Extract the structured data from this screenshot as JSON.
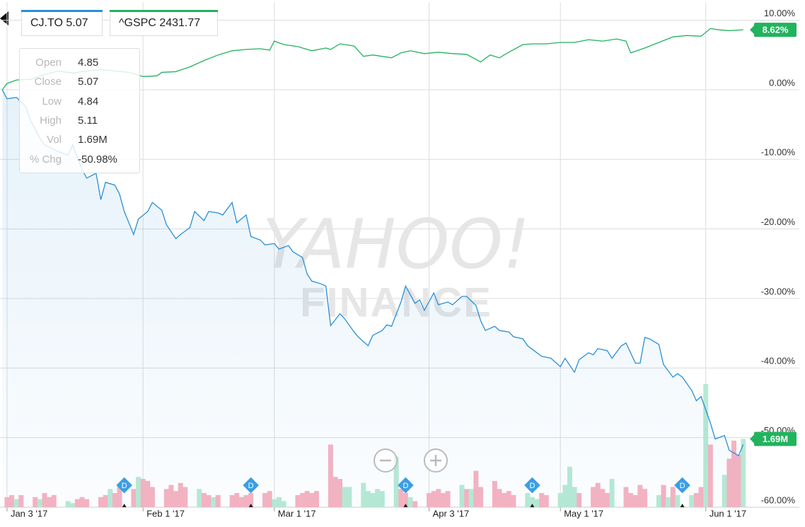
{
  "chart_data": {
    "type": "line",
    "xlim": [
      -1.5,
      158.7
    ],
    "xticks": [
      {
        "value": 0,
        "label": "Jan 3 '17"
      },
      {
        "value": 29,
        "label": "Feb 1 '17"
      },
      {
        "value": 57,
        "label": "Mar 1 '17"
      },
      {
        "value": 90,
        "label": "Apr 3 '17"
      },
      {
        "value": 118,
        "label": "May 1 '17"
      },
      {
        "value": 149,
        "label": "Jun 1 '17"
      }
    ],
    "ylim": [
      -60,
      12.6
    ],
    "yticks": [
      {
        "value": 10,
        "label": "10.00%"
      },
      {
        "value": 0,
        "label": "0.00%"
      },
      {
        "value": -10,
        "label": "-10.00%"
      },
      {
        "value": -20,
        "label": "-20.00%"
      },
      {
        "value": -30,
        "label": "-30.00%"
      },
      {
        "value": -40,
        "label": "-40.00%"
      },
      {
        "value": -50,
        "label": "-50.00%"
      },
      {
        "value": -60,
        "label": "-60.00%"
      }
    ],
    "grid": true,
    "watermark": [
      "YAHOO!",
      "FINANCE"
    ],
    "series": [
      {
        "name": "CJ.TO",
        "last": 5.07,
        "color": "#2a8fd6",
        "area": true,
        "x": [
          -1,
          0,
          2,
          4,
          5,
          7,
          8,
          11,
          13,
          14,
          16,
          17,
          19,
          20,
          21,
          23,
          24,
          25,
          27,
          28,
          30,
          31,
          33,
          34,
          36,
          37,
          39,
          40,
          42,
          43,
          45,
          46,
          48,
          49,
          51,
          52,
          54,
          55,
          57,
          58,
          60,
          61,
          63,
          64,
          65,
          67,
          68,
          69,
          71,
          72,
          74,
          75,
          77,
          78,
          80,
          81,
          82,
          84,
          85,
          87,
          88,
          89,
          91,
          92,
          94,
          95,
          97,
          98,
          100,
          101,
          102,
          104,
          105,
          107,
          108,
          110,
          111,
          113,
          114,
          116,
          118,
          119,
          121,
          122,
          124,
          125,
          126,
          128,
          129,
          131,
          132,
          134,
          135,
          136,
          137,
          139,
          140,
          142,
          143,
          144,
          146,
          147,
          148,
          150,
          151,
          153,
          154,
          156,
          157
        ],
        "values": [
          0,
          -1.3,
          -1.1,
          -2.4,
          -4.4,
          -6.9,
          -7.9,
          -8.9,
          -9.4,
          -7.9,
          -11.5,
          -12.7,
          -12.0,
          -15.8,
          -13.3,
          -13.7,
          -15.0,
          -17.5,
          -20.8,
          -18.6,
          -17.5,
          -16.2,
          -17.3,
          -19.4,
          -21.4,
          -20.8,
          -19.8,
          -17.5,
          -18.8,
          -17.5,
          -17.7,
          -18.0,
          -16.2,
          -19.1,
          -18.0,
          -21.1,
          -21.6,
          -22.3,
          -22.1,
          -22.9,
          -22.4,
          -23.3,
          -24.1,
          -26.5,
          -27.5,
          -27.9,
          -28.2,
          -33.9,
          -32.2,
          -32.9,
          -34.8,
          -35.6,
          -36.8,
          -35.3,
          -34.6,
          -33.8,
          -34.0,
          -30.5,
          -28.2,
          -30.7,
          -30.2,
          -31.7,
          -29.2,
          -30.9,
          -30.5,
          -30.9,
          -29.7,
          -29.7,
          -31.0,
          -33.2,
          -34.6,
          -34.0,
          -34.6,
          -34.8,
          -35.5,
          -35.8,
          -36.8,
          -37.8,
          -38.3,
          -38.6,
          -39.8,
          -38.6,
          -40.6,
          -38.8,
          -37.8,
          -38.1,
          -37.2,
          -37.5,
          -38.6,
          -36.8,
          -36.4,
          -39.3,
          -39.3,
          -35.6,
          -35.8,
          -36.6,
          -39.5,
          -41.3,
          -40.8,
          -41.3,
          -43.2,
          -44.7,
          -44.1,
          -47.9,
          -50.2,
          -49.7,
          -51.8,
          -52.6,
          -50.98
        ]
      },
      {
        "name": "^GSPC",
        "last": 2431.77,
        "color": "#22b35e",
        "area": false,
        "end_label": "8.62%",
        "x": [
          -1,
          0,
          2,
          5,
          8,
          11,
          14,
          17,
          20,
          23,
          26,
          29,
          32,
          33,
          36,
          39,
          42,
          45,
          48,
          51,
          54,
          56,
          57,
          59,
          62,
          65,
          68,
          69,
          71,
          74,
          76,
          78,
          82,
          84,
          86,
          89,
          92,
          95,
          98,
          101,
          103,
          105,
          107,
          110,
          112,
          115,
          118,
          121,
          124,
          127,
          130,
          132,
          133,
          136,
          139,
          142,
          145,
          148,
          150,
          152,
          154,
          157
        ],
        "values": [
          0,
          0.9,
          1.4,
          1.5,
          2.2,
          2.7,
          2.4,
          2.7,
          2.9,
          2.7,
          2.5,
          1.9,
          2.0,
          2.5,
          2.6,
          3.3,
          4.2,
          5.0,
          5.6,
          5.8,
          5.9,
          5.7,
          7.0,
          6.5,
          6.2,
          5.6,
          6.0,
          5.8,
          6.6,
          6.3,
          4.8,
          5.0,
          4.6,
          5.3,
          5.6,
          5.2,
          5.4,
          5.2,
          5.1,
          4.0,
          5.0,
          4.6,
          5.4,
          6.5,
          6.6,
          6.6,
          6.8,
          6.8,
          7.2,
          7.0,
          7.3,
          7.0,
          5.3,
          6.0,
          6.8,
          7.6,
          7.8,
          7.7,
          8.8,
          8.6,
          8.5,
          8.62
        ]
      }
    ],
    "volume": {
      "ylim": [
        0,
        12.5
      ],
      "end_label": "1.69M",
      "x": [
        0,
        1,
        2,
        3,
        6,
        7,
        8,
        9,
        10,
        13,
        14,
        15,
        16,
        17,
        20,
        21,
        22,
        23,
        24,
        27,
        28,
        29,
        30,
        31,
        34,
        35,
        36,
        37,
        38,
        41,
        42,
        43,
        44,
        45,
        48,
        49,
        50,
        51,
        52,
        55,
        56,
        57,
        58,
        59,
        62,
        63,
        64,
        65,
        66,
        69,
        70,
        71,
        72,
        73,
        76,
        77,
        78,
        79,
        80,
        83,
        84,
        85,
        86,
        87,
        90,
        91,
        92,
        93,
        94,
        97,
        98,
        99,
        100,
        101,
        104,
        105,
        106,
        107,
        108,
        111,
        112,
        113,
        114,
        115,
        118,
        119,
        120,
        121,
        122,
        125,
        126,
        127,
        128,
        129,
        132,
        133,
        134,
        135,
        136,
        139,
        140,
        141,
        142,
        143,
        146,
        147,
        148,
        149,
        150,
        153,
        154,
        155,
        156,
        157
      ],
      "values": [
        0.25,
        0.3,
        0.2,
        0.3,
        0.25,
        0.2,
        0.35,
        0.25,
        0.3,
        0.15,
        0.1,
        0.2,
        0.25,
        0.2,
        0.25,
        0.3,
        0.45,
        0.35,
        0.5,
        0.45,
        0.75,
        0.7,
        0.65,
        0.5,
        0.45,
        0.55,
        0.4,
        0.6,
        0.5,
        0.45,
        0.35,
        0.3,
        0.25,
        0.3,
        0.3,
        0.35,
        0.25,
        0.3,
        0.35,
        0.35,
        0.4,
        0.2,
        0.25,
        0.15,
        0.3,
        0.35,
        0.4,
        0.35,
        0.4,
        1.55,
        0.75,
        0.7,
        0.5,
        0.5,
        0.6,
        0.4,
        0.35,
        0.45,
        0.4,
        1.25,
        0.45,
        0.35,
        0.25,
        0.15,
        0.35,
        0.4,
        0.45,
        0.35,
        0.4,
        0.55,
        0.45,
        0.45,
        0.9,
        0.5,
        0.65,
        0.45,
        0.35,
        0.4,
        0.3,
        0.35,
        0.25,
        0.2,
        0.35,
        0.3,
        0.35,
        0.55,
        1.0,
        0.5,
        0.35,
        0.5,
        0.6,
        0.45,
        0.35,
        0.7,
        0.5,
        0.35,
        0.3,
        0.55,
        0.45,
        0.3,
        0.55,
        0.25,
        0.5,
        0.3,
        0.3,
        0.35,
        0.5,
        3.05,
        1.55,
        0.8,
        1.2,
        1.65,
        1.3,
        1.69
      ],
      "colors": [
        "#f6b3c1",
        "#f6b3c1",
        "#b7ead4",
        "#f6b3c1",
        "#f6b3c1",
        "#b7ead4",
        "#f6b3c1",
        "#f6b3c1",
        "#f6b3c1",
        "#b7ead4",
        "#b7ead4",
        "#f6b3c1",
        "#f6b3c1",
        "#f6b3c1",
        "#f6b3c1",
        "#f6b3c1",
        "#b7ead4",
        "#f6b3c1",
        "#f6b3c1",
        "#f6b3c1",
        "#b7ead4",
        "#f6b3c1",
        "#f6b3c1",
        "#f6b3c1",
        "#f6b3c1",
        "#f6b3c1",
        "#f6b3c1",
        "#f6b3c1",
        "#f6b3c1",
        "#b7ead4",
        "#f6b3c1",
        "#f6b3c1",
        "#b7ead4",
        "#f6b3c1",
        "#f6b3c1",
        "#f6b3c1",
        "#f6b3c1",
        "#f6b3c1",
        "#f6b3c1",
        "#f6b3c1",
        "#f6b3c1",
        "#b7ead4",
        "#b7ead4",
        "#b7ead4",
        "#f6b3c1",
        "#f6b3c1",
        "#f6b3c1",
        "#f6b3c1",
        "#f6b3c1",
        "#f6b3c1",
        "#f6b3c1",
        "#f6b3c1",
        "#b7ead4",
        "#b7ead4",
        "#b7ead4",
        "#b7ead4",
        "#b7ead4",
        "#b7ead4",
        "#b7ead4",
        "#b7ead4",
        "#f6b3c1",
        "#f6b3c1",
        "#b7ead4",
        "#f6b3c1",
        "#f6b3c1",
        "#f6b3c1",
        "#f6b3c1",
        "#f6b3c1",
        "#f6b3c1",
        "#b7ead4",
        "#f6b3c1",
        "#b7ead4",
        "#f6b3c1",
        "#f6b3c1",
        "#f6b3c1",
        "#f6b3c1",
        "#f6b3c1",
        "#f6b3c1",
        "#f6b3c1",
        "#b7ead4",
        "#b7ead4",
        "#b7ead4",
        "#f6b3c1",
        "#f6b3c1",
        "#b7ead4",
        "#b7ead4",
        "#b7ead4",
        "#b7ead4",
        "#f6b3c1",
        "#f6b3c1",
        "#f6b3c1",
        "#f6b3c1",
        "#f6b3c1",
        "#b7ead4",
        "#f6b3c1",
        "#f6b3c1",
        "#f6b3c1",
        "#f6b3c1",
        "#f6b3c1",
        "#b7ead4",
        "#f6b3c1",
        "#b7ead4",
        "#f6b3c1",
        "#b7ead4",
        "#b7ead4",
        "#f6b3c1",
        "#f6b3c1",
        "#b7ead4",
        "#f6b3c1",
        "#b7ead4",
        "#f6b3c1",
        "#f6b3c1",
        "#f6b3c1",
        "#b7ead4"
      ]
    },
    "events": {
      "label": "D",
      "color": "#3b9ee6",
      "x": [
        25,
        52,
        85,
        112,
        144
      ]
    },
    "tooltip": [
      {
        "label": "Open",
        "value": "4.85"
      },
      {
        "label": "Close",
        "value": "5.07"
      },
      {
        "label": "Low",
        "value": "4.84"
      },
      {
        "label": "High",
        "value": "5.11"
      },
      {
        "label": "Vol",
        "value": "1.69M"
      },
      {
        "label": "% Chg",
        "value": "-50.98%"
      }
    ]
  }
}
